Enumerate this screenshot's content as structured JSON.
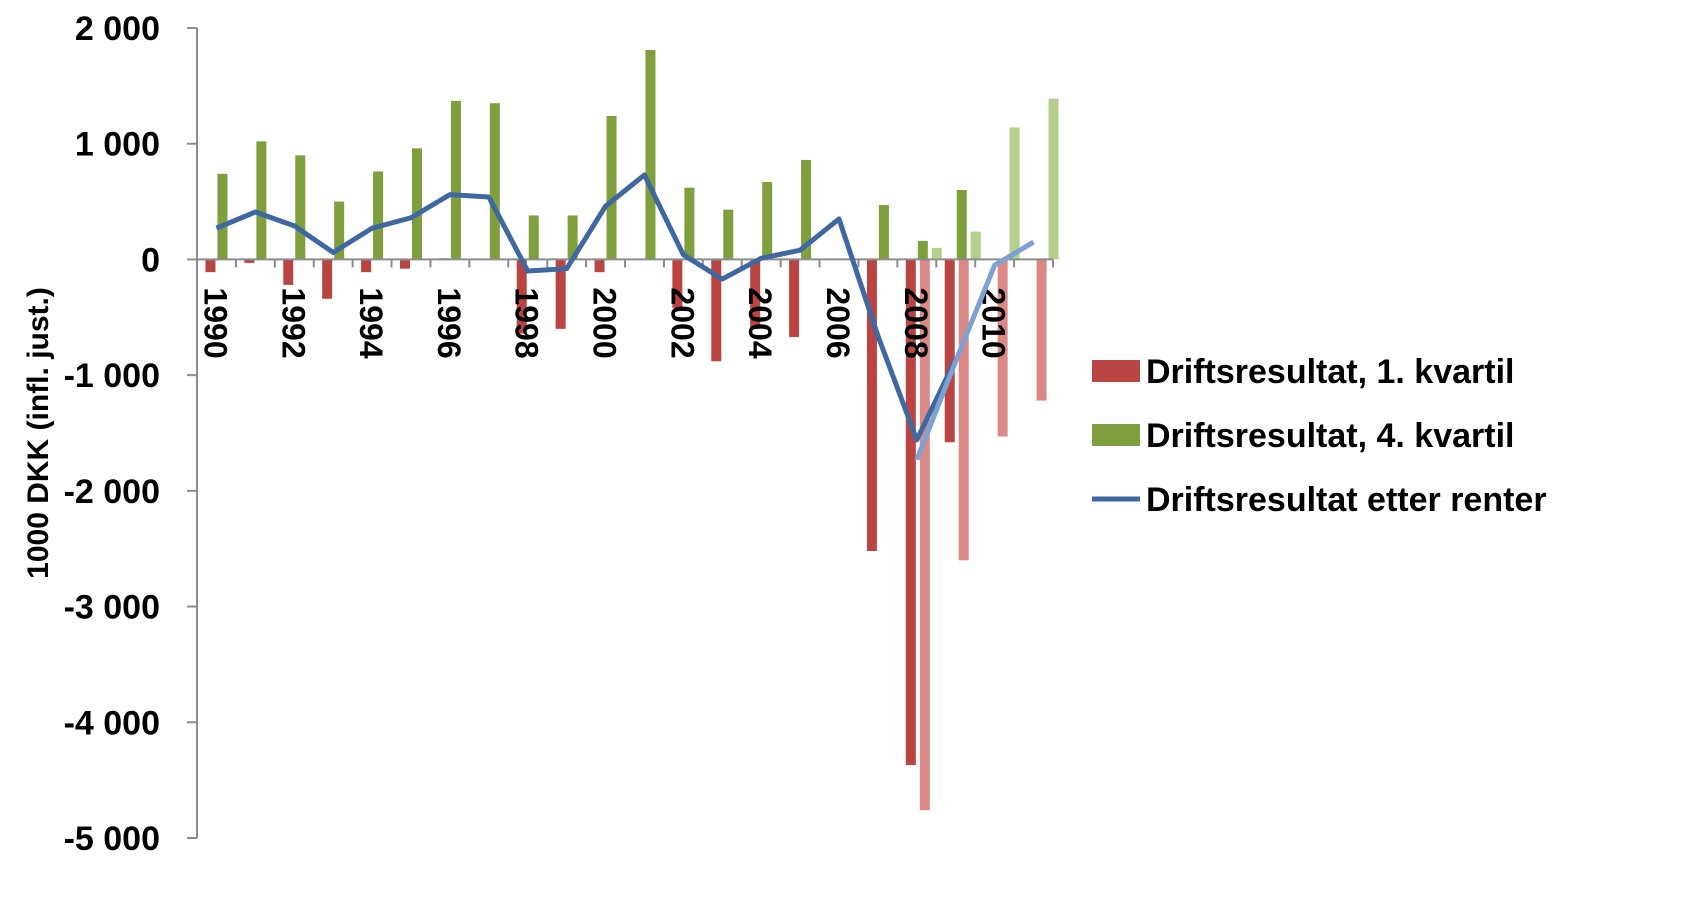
{
  "chart_data": {
    "type": "bar",
    "title": "",
    "ylabel": "1000 DKK (infl. just.)",
    "xlabel": "",
    "ylim": [
      -5000,
      2000
    ],
    "yticks": [
      2000,
      1000,
      0,
      -1000,
      -2000,
      -3000,
      -4000,
      -5000
    ],
    "ytick_labels": [
      "2 000",
      "1 000",
      "0",
      "-1 000",
      "-2 000",
      "-3 000",
      "-4 000",
      "-5 000"
    ],
    "x": [
      1990,
      1991,
      1992,
      1993,
      1994,
      1995,
      1996,
      1997,
      1998,
      1999,
      2000,
      2001,
      2002,
      2003,
      2004,
      2005,
      2006,
      2007,
      2008,
      2009,
      2010,
      2011
    ],
    "xtick_labels": [
      "1990",
      "1992",
      "1994",
      "1996",
      "1998",
      "2000",
      "2002",
      "2004",
      "2006",
      "2008",
      "2010"
    ],
    "xtick_years": [
      1990,
      1992,
      1994,
      1996,
      1998,
      2000,
      2002,
      2004,
      2006,
      2008,
      2010
    ],
    "grid": false,
    "legend_position": "right",
    "series": [
      {
        "name": "Driftsresultat, 1. kvartil",
        "kind": "bar",
        "color": "#B94441",
        "values": [
          -110,
          -30,
          -220,
          -340,
          -110,
          -80,
          10,
          0,
          -640,
          -600,
          -110,
          0,
          -420,
          -880,
          -600,
          -670,
          0,
          -2520,
          -4370,
          -1580,
          0,
          0
        ]
      },
      {
        "name": "Driftsresultat, 4. kvartil",
        "kind": "bar",
        "color": "#7F9F3E",
        "values": [
          740,
          1020,
          900,
          500,
          760,
          960,
          1370,
          1350,
          380,
          380,
          1240,
          1810,
          620,
          430,
          670,
          860,
          0,
          470,
          160,
          600,
          0,
          0
        ]
      },
      {
        "name": "Driftsresultat etter renter",
        "kind": "line",
        "color": "#3F68A0",
        "values": [
          270,
          410,
          290,
          60,
          270,
          360,
          560,
          540,
          -100,
          -80,
          460,
          730,
          40,
          -170,
          10,
          80,
          350,
          -660,
          -1560,
          -860,
          null,
          null
        ]
      }
    ],
    "projection": {
      "note": "",
      "bar_q1_color": "#DB8986",
      "bar_q4_color": "#B4D08C",
      "line_color": "#7FA1D2",
      "x_q1": [
        2008,
        2009,
        2010,
        2011
      ],
      "q1_values": [
        -4760,
        -2600,
        -1530,
        -1220
      ],
      "x_q4": [
        2008,
        2009,
        2010,
        2011
      ],
      "q4_values": [
        100,
        240,
        1140,
        1390
      ],
      "line_x": [
        2008,
        2009,
        2010,
        2011
      ],
      "line_values": [
        -1730,
        -880,
        -50,
        150
      ]
    }
  }
}
